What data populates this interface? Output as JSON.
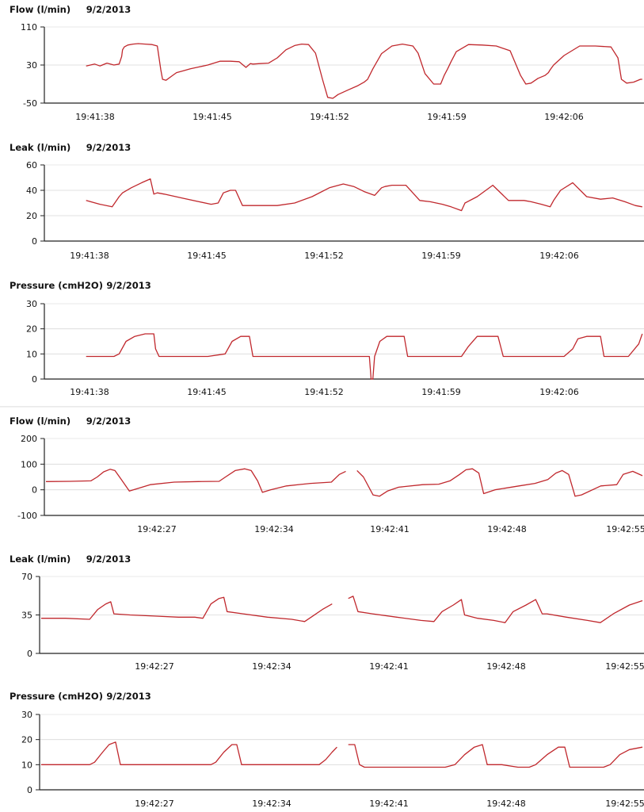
{
  "chart_data": [
    {
      "type": "line",
      "title": "Flow (l/min)",
      "date": "9/2/2013",
      "yticks": [
        "110",
        "30",
        "-50"
      ],
      "ylim": [
        -50,
        110
      ],
      "grid": true,
      "xticks": [
        "19:41:38",
        "19:41:45",
        "19:41:52",
        "19:41:59",
        "19:42:06"
      ],
      "line_color": "#c0282d",
      "series": [
        {
          "x": [
            0,
            0.5,
            0.8,
            1.2,
            1.6,
            1.9,
            2.05,
            2.1,
            2.2,
            2.4,
            2.7,
            3.0,
            3.4,
            3.8,
            4.1,
            4.3,
            4.4,
            4.6,
            4.9,
            5.2,
            5.6,
            6.0,
            6.5,
            7.0,
            7.7,
            8.0,
            8.3,
            8.8,
            9.2,
            9.45,
            9.6,
            10.0,
            10.5,
            11.0,
            11.5,
            12.0,
            12.4,
            12.8,
            13.2,
            13.6,
            13.9,
            14.2,
            14.5,
            15.1,
            15.6,
            16.0,
            16.2,
            16.5,
            17.0,
            17.6,
            18.2,
            18.8,
            19.1,
            19.5,
            20.0,
            20.4,
            20.6,
            20.8,
            21.0,
            21.3,
            22.0,
            22.8,
            23.6,
            24.4,
            25.0,
            25.3,
            25.6,
            26.0,
            26.4,
            26.6,
            26.7,
            26.9,
            27.5,
            28.4,
            29.3,
            30.2,
            30.6,
            30.8,
            31.1,
            31.5,
            31.9,
            32.0
          ],
          "y": [
            28,
            32,
            28,
            34,
            30,
            32,
            48,
            62,
            68,
            72,
            74,
            75,
            74,
            73,
            70,
            20,
            0,
            -2,
            6,
            14,
            18,
            22,
            26,
            30,
            38,
            38,
            38,
            37,
            25,
            33,
            32,
            33,
            34,
            45,
            62,
            71,
            74,
            73,
            55,
            0,
            -38,
            -40,
            -32,
            -22,
            -14,
            -6,
            0,
            22,
            54,
            70,
            74,
            70,
            55,
            12,
            -10,
            -10,
            8,
            22,
            37,
            58,
            73,
            72,
            70,
            60,
            8,
            -10,
            -8,
            2,
            8,
            14,
            20,
            30,
            50,
            70,
            70,
            68,
            45,
            0,
            -8,
            -6,
            0,
            0
          ]
        }
      ]
    },
    {
      "type": "line",
      "title": "Leak (l/min)",
      "date": "9/2/2013",
      "yticks": [
        "60",
        "40",
        "20",
        "0"
      ],
      "ylim": [
        0,
        60
      ],
      "grid": true,
      "xticks": [
        "19:41:38",
        "19:41:45",
        "19:41:52",
        "19:41:59",
        "19:42:06"
      ],
      "line_color": "#c0282d",
      "series": [
        {
          "x": [
            0,
            0.8,
            1.5,
            1.9,
            2.1,
            2.6,
            3.2,
            3.7,
            3.9,
            4.1,
            4.5,
            5.5,
            6.5,
            7.2,
            7.6,
            7.9,
            8.3,
            8.6,
            9.0,
            10.0,
            11.0,
            12.0,
            13.0,
            14.0,
            14.8,
            15.4,
            16.0,
            16.6,
            17.0,
            17.2,
            17.6,
            18.4,
            19.2,
            19.8,
            20.5,
            21.0,
            21.6,
            21.8,
            22.5,
            23.4,
            24.3,
            25.2,
            25.6,
            26.2,
            26.7,
            26.9,
            27.3,
            28.0,
            28.8,
            29.6,
            30.3,
            31.0,
            31.6,
            32.0
          ],
          "y": [
            32,
            29,
            27,
            35,
            38,
            42,
            46,
            49,
            37,
            38,
            37,
            34,
            31,
            29,
            30,
            38,
            40,
            40,
            28,
            28,
            28,
            30,
            35,
            42,
            45,
            43,
            39,
            36,
            42,
            43,
            44,
            44,
            32,
            31,
            29,
            27,
            24,
            30,
            35,
            44,
            32,
            32,
            31,
            29,
            27,
            32,
            40,
            46,
            35,
            33,
            34,
            31,
            28,
            27
          ]
        }
      ]
    },
    {
      "type": "line",
      "title": "Pressure (cmH2O)",
      "date": "9/2/2013",
      "yticks": [
        "30",
        "20",
        "10",
        "0"
      ],
      "ylim": [
        0,
        30
      ],
      "grid": true,
      "xticks": [
        "19:41:38",
        "19:41:45",
        "19:41:52",
        "19:41:59",
        "19:42:06"
      ],
      "line_color": "#c0282d",
      "series": [
        {
          "x": [
            0,
            1.6,
            1.9,
            2.3,
            2.8,
            3.4,
            3.9,
            4.0,
            4.2,
            4.5,
            5.2,
            6.0,
            7.0,
            8.0,
            8.4,
            8.9,
            9.4,
            9.6,
            10.5,
            11.5,
            12.5,
            13.5,
            14.5,
            15.0,
            16.0,
            16.3,
            16.4,
            16.5,
            16.6,
            16.9,
            17.3,
            17.8,
            18.3,
            18.5,
            19.0,
            20.0,
            21.0,
            21.6,
            22.0,
            22.5,
            23.0,
            23.7,
            24.0,
            24.1,
            25.5,
            26.5,
            27.5,
            28.0,
            28.3,
            28.8,
            29.3,
            29.6,
            29.8,
            30.5,
            31.2,
            31.8,
            32.0
          ],
          "y": [
            9,
            9,
            10,
            15,
            17,
            18,
            18,
            12,
            9,
            9,
            9,
            9,
            9,
            10,
            15,
            17,
            17,
            9,
            9,
            9,
            9,
            9,
            9,
            9,
            9,
            9,
            0,
            0,
            9,
            15,
            17,
            17,
            17,
            9,
            9,
            9,
            9,
            9,
            13,
            17,
            17,
            17,
            9,
            9,
            9,
            9,
            9,
            12,
            16,
            17,
            17,
            17,
            9,
            9,
            9,
            14,
            18
          ]
        }
      ]
    },
    {
      "type": "line",
      "title": "Flow (l/min)",
      "date": "9/2/2013",
      "yticks": [
        "200",
        "100",
        "0",
        "-100"
      ],
      "ylim": [
        -100,
        200
      ],
      "grid": true,
      "xticks": [
        "19:42:27",
        "19:42:34",
        "19:42:41",
        "19:42:48",
        "19:42:55"
      ],
      "line_color": "#c0282d",
      "series": [
        {
          "x": [
            0,
            1.5,
            2.8,
            3.2,
            3.6,
            4.0,
            4.3,
            4.7,
            5.2,
            6.5,
            8.0,
            9.5,
            10.8,
            11.2,
            11.8,
            12.4,
            12.8,
            13.2,
            13.5,
            14.0,
            15.0,
            16.5,
            17.8,
            18.3,
            18.7,
            null,
            19.4,
            19.8,
            20.4,
            20.8,
            21.3,
            22.0,
            23.5,
            24.5,
            25.2,
            25.8,
            26.2,
            26.6,
            27.0,
            27.3,
            28.0,
            29.5,
            30.5,
            31.3,
            31.8,
            32.2,
            32.6,
            33.0,
            33.4,
            34.6,
            35.6,
            36.0,
            36.6,
            37.2
          ],
          "y": [
            32,
            33,
            35,
            50,
            70,
            80,
            75,
            40,
            -5,
            20,
            30,
            32,
            33,
            50,
            75,
            82,
            75,
            35,
            -10,
            0,
            15,
            25,
            30,
            60,
            72,
            null,
            75,
            50,
            -20,
            -25,
            -5,
            10,
            20,
            22,
            35,
            60,
            78,
            82,
            65,
            -15,
            0,
            15,
            25,
            40,
            65,
            75,
            60,
            -25,
            -20,
            15,
            20,
            60,
            72,
            55
          ]
        }
      ]
    },
    {
      "type": "line",
      "title": "Leak (l/min)",
      "date": "9/2/2013",
      "yticks": [
        "70",
        "35",
        "0"
      ],
      "ylim": [
        0,
        70
      ],
      "grid": true,
      "xticks": [
        "19:42:27",
        "19:42:34",
        "19:42:41",
        "19:42:48",
        "19:42:55"
      ],
      "line_color": "#c0282d",
      "series": [
        {
          "x": [
            0,
            1.5,
            3.0,
            3.5,
            4.0,
            4.3,
            4.5,
            5.5,
            7.0,
            8.5,
            9.5,
            10.0,
            10.5,
            11.0,
            11.3,
            11.5,
            12.5,
            14.0,
            15.5,
            16.3,
            16.8,
            17.4,
            18.0,
            null,
            19.0,
            19.3,
            19.6,
            20.5,
            22.0,
            23.5,
            24.3,
            24.8,
            25.5,
            26.0,
            26.2,
            27.0,
            28.0,
            28.7,
            29.2,
            30.0,
            30.6,
            31.0,
            31.3,
            32.5,
            33.8,
            34.6,
            35.4,
            36.4,
            37.2
          ],
          "y": [
            32,
            32,
            31,
            40,
            45,
            47,
            36,
            35,
            34,
            33,
            33,
            32,
            45,
            50,
            51,
            38,
            36,
            33,
            31,
            29,
            34,
            40,
            45,
            null,
            50,
            52,
            38,
            36,
            33,
            30,
            29,
            38,
            44,
            49,
            35,
            32,
            30,
            28,
            38,
            44,
            49,
            36,
            36,
            33,
            30,
            28,
            36,
            44,
            48
          ]
        }
      ]
    },
    {
      "type": "line",
      "title": "Pressure (cmH2O)",
      "date": "9/2/2013",
      "yticks": [
        "30",
        "20",
        "10",
        "0"
      ],
      "ylim": [
        0,
        30
      ],
      "grid": true,
      "xticks": [
        "19:42:27",
        "19:42:34",
        "19:42:41",
        "19:42:48",
        "19:42:55"
      ],
      "line_color": "#c0282d",
      "series": [
        {
          "x": [
            0,
            3.0,
            3.3,
            3.8,
            4.2,
            4.6,
            4.9,
            5.5,
            8.0,
            10.5,
            10.8,
            11.3,
            11.8,
            12.1,
            12.4,
            13.0,
            15.5,
            17.2,
            17.6,
            18.0,
            18.3,
            null,
            19.0,
            19.4,
            19.7,
            20.0,
            21.0,
            22.5,
            24.0,
            25.0,
            25.6,
            26.2,
            26.8,
            27.3,
            27.6,
            28.5,
            29.5,
            30.2,
            30.6,
            31.3,
            32.0,
            32.4,
            32.7,
            33.5,
            34.8,
            35.2,
            35.8,
            36.4,
            37.2
          ],
          "y": [
            10,
            10,
            11,
            15,
            18,
            19,
            10,
            10,
            10,
            10,
            11,
            15,
            18,
            18,
            10,
            10,
            10,
            10,
            12,
            15,
            17,
            null,
            18,
            18,
            10,
            9,
            9,
            9,
            9,
            9,
            10,
            14,
            17,
            18,
            10,
            10,
            9,
            9,
            10,
            14,
            17,
            17,
            9,
            9,
            9,
            10,
            14,
            16,
            17
          ]
        }
      ]
    }
  ]
}
